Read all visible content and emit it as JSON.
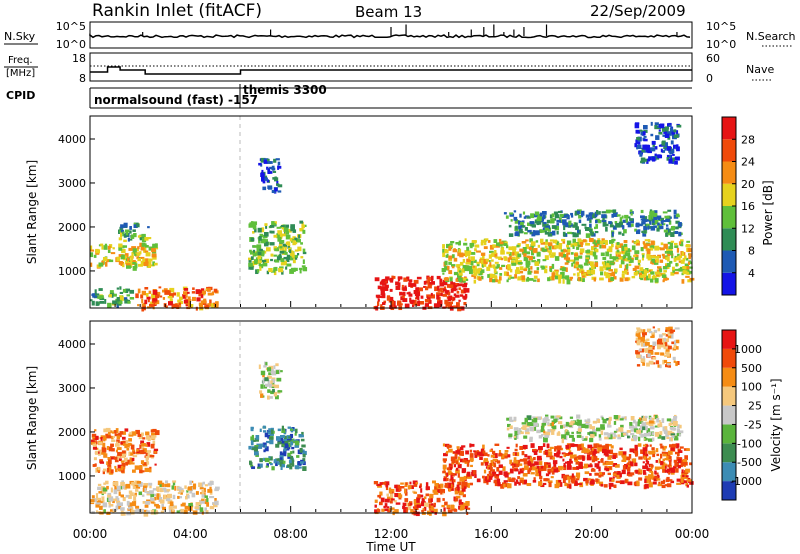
{
  "header": {
    "station": "Rankin Inlet (fitACF)",
    "beam": "Beam 13",
    "date": "22/Sep/2009"
  },
  "noise_panel": {
    "left_label": "N.Sky",
    "right_label": "N.Search",
    "ytick_top": "10^5",
    "ytick_bottom": "10^0"
  },
  "freq_panel": {
    "left_label_line1": "Freq.",
    "left_label_line2": "[MHz]",
    "left_ticks": [
      "18",
      "8"
    ],
    "right_label": "Nave",
    "right_ticks": [
      "60",
      "0"
    ]
  },
  "cpid_panel": {
    "label": "CPID",
    "modes": [
      {
        "text": "normalsound (fast) -157",
        "start_hour": 0
      },
      {
        "text": "themis 3300",
        "start_hour": 6
      }
    ]
  },
  "x_axis": {
    "label": "Time UT",
    "range_hours": [
      0,
      24
    ],
    "ticks": [
      "00:00",
      "04:00",
      "08:00",
      "12:00",
      "16:00",
      "20:00",
      "00:00"
    ]
  },
  "chart_data": [
    {
      "type": "heatmap",
      "panel": "power",
      "ylabel": "Slant Range [km]",
      "yticks": [
        "1000",
        "2000",
        "3000",
        "4000"
      ],
      "ylim": [
        180,
        4500
      ],
      "colorbar_label": "Power [dB]",
      "colorbar_ticks": [
        "4",
        "8",
        "12",
        "16",
        "20",
        "24",
        "28"
      ],
      "colorbar_colors": [
        "#1414e6",
        "#1e5ab4",
        "#2f8c55",
        "#5fbf3a",
        "#e6d21e",
        "#f58c14",
        "#f04a0a",
        "#e61414"
      ],
      "features": [
        {
          "t": [
            0.0,
            2.6
          ],
          "r": [
            1100,
            1650
          ],
          "level": 0.55
        },
        {
          "t": [
            1.1,
            2.3
          ],
          "r": [
            1700,
            2100
          ],
          "level": 0.4
        },
        {
          "t": [
            0.0,
            1.6
          ],
          "r": [
            250,
            650
          ],
          "level": 0.35
        },
        {
          "t": [
            1.8,
            5.0
          ],
          "r": [
            180,
            650
          ],
          "level": 0.75
        },
        {
          "t": [
            6.3,
            8.5
          ],
          "r": [
            1000,
            2150
          ],
          "level": 0.45
        },
        {
          "t": [
            11.3,
            15.0
          ],
          "r": [
            180,
            900
          ],
          "level": 0.95
        },
        {
          "t": [
            14.0,
            23.9
          ],
          "r": [
            800,
            1750
          ],
          "level": 0.55
        },
        {
          "t": [
            16.5,
            23.5
          ],
          "r": [
            1850,
            2400
          ],
          "level": 0.3
        },
        {
          "t": [
            6.7,
            7.5
          ],
          "r": [
            2800,
            3600
          ],
          "level": 0.15
        },
        {
          "t": [
            21.7,
            23.4
          ],
          "r": [
            3500,
            4400
          ],
          "level": 0.15
        }
      ]
    },
    {
      "type": "heatmap",
      "panel": "velocity",
      "ylabel": "Slant Range [km]",
      "yticks": [
        "1000",
        "2000",
        "3000",
        "4000"
      ],
      "ylim": [
        180,
        4500
      ],
      "colorbar_label": "Velocity [m s⁻¹]",
      "colorbar_ticks": [
        "1000",
        "500",
        "100",
        "25",
        "-25",
        "-100",
        "-500",
        "-1000"
      ],
      "colorbar_colors": [
        "#1e3cb4",
        "#3c8cb4",
        "#3c8c50",
        "#5ab43c",
        "#c8c8c8",
        "#f5c87d",
        "#f58c14",
        "#f04a0a",
        "#e61414"
      ],
      "features": [
        {
          "t": [
            0.0,
            2.6
          ],
          "r": [
            1100,
            2100
          ],
          "level": 0.75
        },
        {
          "t": [
            0.0,
            5.0
          ],
          "r": [
            180,
            900
          ],
          "level": 0.6
        },
        {
          "t": [
            6.3,
            8.5
          ],
          "r": [
            1200,
            2150
          ],
          "level": 0.2
        },
        {
          "t": [
            11.3,
            15.0
          ],
          "r": [
            180,
            900
          ],
          "level": 0.82
        },
        {
          "t": [
            14.0,
            23.9
          ],
          "r": [
            800,
            1750
          ],
          "level": 0.85
        },
        {
          "t": [
            16.5,
            23.5
          ],
          "r": [
            1850,
            2400
          ],
          "level": 0.5
        },
        {
          "t": [
            6.7,
            7.5
          ],
          "r": [
            2800,
            3600
          ],
          "level": 0.5
        },
        {
          "t": [
            21.7,
            23.4
          ],
          "r": [
            3500,
            4400
          ],
          "level": 0.7
        }
      ]
    }
  ]
}
